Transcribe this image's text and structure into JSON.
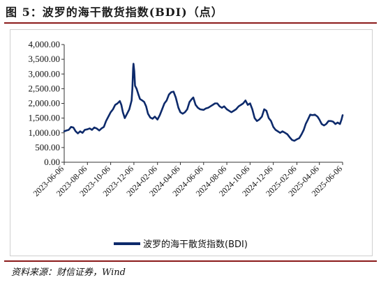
{
  "figure": {
    "title": "图 5：波罗的海干散货指数(BDI)（点）",
    "source": "资料来源：财信证券，Wind"
  },
  "colors": {
    "series": "#0d2a6b",
    "rule": "#8b1a1a"
  },
  "chart_data": {
    "type": "line",
    "title": "",
    "xlabel": "",
    "ylabel": "",
    "ylim": [
      0,
      4000
    ],
    "y_ticks": [
      "0.00",
      "500.00",
      "1,000.00",
      "1,500.00",
      "2,000.00",
      "2,500.00",
      "3,000.00",
      "3,500.00",
      "4,000.00"
    ],
    "x_ticks": [
      "2023-06-06",
      "2023-08-06",
      "2023-10-06",
      "2023-12-06",
      "2024-02-06",
      "2024-04-06",
      "2024-06-06",
      "2024-08-06",
      "2024-10-06",
      "2024-12-06",
      "2025-02-06",
      "2025-04-06",
      "2025-06-06"
    ],
    "grid": false,
    "legend_position": "bottom",
    "series": [
      {
        "name": "波罗的海干散货指数(BDI)",
        "points": [
          [
            "2023-06-06",
            1050
          ],
          [
            "2023-06-12",
            1080
          ],
          [
            "2023-06-18",
            1100
          ],
          [
            "2023-06-24",
            1200
          ],
          [
            "2023-06-30",
            1180
          ],
          [
            "2023-07-06",
            1050
          ],
          [
            "2023-07-12",
            980
          ],
          [
            "2023-07-18",
            1050
          ],
          [
            "2023-07-24",
            1000
          ],
          [
            "2023-07-30",
            1100
          ],
          [
            "2023-08-06",
            1120
          ],
          [
            "2023-08-12",
            1150
          ],
          [
            "2023-08-18",
            1100
          ],
          [
            "2023-08-24",
            1180
          ],
          [
            "2023-08-30",
            1150
          ],
          [
            "2023-09-06",
            1080
          ],
          [
            "2023-09-12",
            1150
          ],
          [
            "2023-09-18",
            1200
          ],
          [
            "2023-09-24",
            1400
          ],
          [
            "2023-09-30",
            1550
          ],
          [
            "2023-10-06",
            1700
          ],
          [
            "2023-10-12",
            1800
          ],
          [
            "2023-10-18",
            1950
          ],
          [
            "2023-10-24",
            2000
          ],
          [
            "2023-10-30",
            2080
          ],
          [
            "2023-11-03",
            1950
          ],
          [
            "2023-11-07",
            1700
          ],
          [
            "2023-11-12",
            1500
          ],
          [
            "2023-11-18",
            1650
          ],
          [
            "2023-11-24",
            1800
          ],
          [
            "2023-11-30",
            2100
          ],
          [
            "2023-12-02",
            2500
          ],
          [
            "2023-12-04",
            3200
          ],
          [
            "2023-12-05",
            3350
          ],
          [
            "2023-12-07",
            3100
          ],
          [
            "2023-12-09",
            2600
          ],
          [
            "2023-12-13",
            2500
          ],
          [
            "2023-12-18",
            2300
          ],
          [
            "2023-12-22",
            2150
          ],
          [
            "2023-12-28",
            2100
          ],
          [
            "2024-01-02",
            2050
          ],
          [
            "2024-01-07",
            1900
          ],
          [
            "2024-01-12",
            1650
          ],
          [
            "2024-01-18",
            1520
          ],
          [
            "2024-01-24",
            1480
          ],
          [
            "2024-01-30",
            1550
          ],
          [
            "2024-02-06",
            1450
          ],
          [
            "2024-02-12",
            1600
          ],
          [
            "2024-02-18",
            1800
          ],
          [
            "2024-02-24",
            2000
          ],
          [
            "2024-03-01",
            2100
          ],
          [
            "2024-03-07",
            2300
          ],
          [
            "2024-03-13",
            2380
          ],
          [
            "2024-03-19",
            2400
          ],
          [
            "2024-03-25",
            2200
          ],
          [
            "2024-04-01",
            1850
          ],
          [
            "2024-04-06",
            1700
          ],
          [
            "2024-04-12",
            1650
          ],
          [
            "2024-04-18",
            1700
          ],
          [
            "2024-04-24",
            1800
          ],
          [
            "2024-04-30",
            2050
          ],
          [
            "2024-05-06",
            2150
          ],
          [
            "2024-05-10",
            2200
          ],
          [
            "2024-05-16",
            1950
          ],
          [
            "2024-05-22",
            1850
          ],
          [
            "2024-05-28",
            1800
          ],
          [
            "2024-06-06",
            1780
          ],
          [
            "2024-06-12",
            1830
          ],
          [
            "2024-06-18",
            1850
          ],
          [
            "2024-06-24",
            1900
          ],
          [
            "2024-06-30",
            1950
          ],
          [
            "2024-07-06",
            2000
          ],
          [
            "2024-07-12",
            2000
          ],
          [
            "2024-07-18",
            1900
          ],
          [
            "2024-07-24",
            1850
          ],
          [
            "2024-07-30",
            1900
          ],
          [
            "2024-08-06",
            1800
          ],
          [
            "2024-08-12",
            1750
          ],
          [
            "2024-08-18",
            1700
          ],
          [
            "2024-08-24",
            1750
          ],
          [
            "2024-08-30",
            1800
          ],
          [
            "2024-09-06",
            1900
          ],
          [
            "2024-09-12",
            1950
          ],
          [
            "2024-09-18",
            2000
          ],
          [
            "2024-09-24",
            2100
          ],
          [
            "2024-09-30",
            1950
          ],
          [
            "2024-10-06",
            2000
          ],
          [
            "2024-10-12",
            1800
          ],
          [
            "2024-10-18",
            1500
          ],
          [
            "2024-10-24",
            1400
          ],
          [
            "2024-10-30",
            1450
          ],
          [
            "2024-11-06",
            1550
          ],
          [
            "2024-11-12",
            1800
          ],
          [
            "2024-11-18",
            1750
          ],
          [
            "2024-11-24",
            1500
          ],
          [
            "2024-11-30",
            1400
          ],
          [
            "2024-12-06",
            1200
          ],
          [
            "2024-12-12",
            1100
          ],
          [
            "2024-12-18",
            1050
          ],
          [
            "2024-12-24",
            1000
          ],
          [
            "2024-12-30",
            1050
          ],
          [
            "2025-01-06",
            1000
          ],
          [
            "2025-01-12",
            950
          ],
          [
            "2025-01-18",
            850
          ],
          [
            "2025-01-24",
            760
          ],
          [
            "2025-01-30",
            730
          ],
          [
            "2025-02-06",
            780
          ],
          [
            "2025-02-12",
            820
          ],
          [
            "2025-02-18",
            950
          ],
          [
            "2025-02-24",
            1100
          ],
          [
            "2025-03-01",
            1300
          ],
          [
            "2025-03-07",
            1450
          ],
          [
            "2025-03-13",
            1620
          ],
          [
            "2025-03-19",
            1600
          ],
          [
            "2025-03-25",
            1620
          ],
          [
            "2025-04-01",
            1550
          ],
          [
            "2025-04-06",
            1450
          ],
          [
            "2025-04-12",
            1300
          ],
          [
            "2025-04-18",
            1250
          ],
          [
            "2025-04-24",
            1300
          ],
          [
            "2025-04-30",
            1400
          ],
          [
            "2025-05-06",
            1400
          ],
          [
            "2025-05-12",
            1380
          ],
          [
            "2025-05-18",
            1300
          ],
          [
            "2025-05-24",
            1350
          ],
          [
            "2025-05-30",
            1300
          ],
          [
            "2025-06-03",
            1450
          ],
          [
            "2025-06-06",
            1600
          ]
        ]
      }
    ]
  }
}
